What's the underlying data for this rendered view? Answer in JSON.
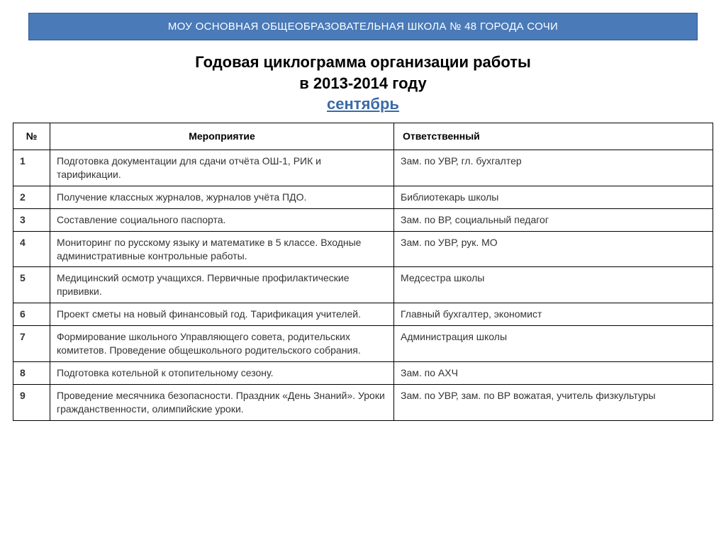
{
  "header": {
    "org_name": "МОУ ОСНОВНАЯ ОБЩЕОБРАЗОВАТЕЛЬНАЯ ШКОЛА № 48 ГОРОДА СОЧИ"
  },
  "title": {
    "line1": "Годовая циклограмма организации работы",
    "line2": "в 2013-2014 году",
    "month": "сентябрь"
  },
  "table": {
    "columns": {
      "num": "№",
      "event": "Мероприятие",
      "responsible": "Ответственный"
    },
    "rows": [
      {
        "num": "1",
        "event": "Подготовка документации для сдачи отчёта ОШ-1, РИК и тарификации.",
        "responsible": "Зам. по УВР, гл. бухгалтер"
      },
      {
        "num": "2",
        "event": "Получение классных журналов, журналов учёта ПДО.",
        "responsible": "Библиотекарь школы"
      },
      {
        "num": "3",
        "event": "Составление социального паспорта.",
        "responsible": "Зам. по ВР, социальный педагог"
      },
      {
        "num": "4",
        "event": "Мониторинг по русскому языку и математике в 5 классе. Входные административные контрольные работы.",
        "responsible": "Зам. по УВР, рук. МО"
      },
      {
        "num": "5",
        "event": "Медицинский осмотр учащихся. Первичные профилактические прививки.",
        "responsible": "Медсестра школы"
      },
      {
        "num": "6",
        "event": "Проект сметы на новый финансовый год. Тарификация учителей.",
        "responsible": "Главный бухгалтер, экономист"
      },
      {
        "num": "7",
        "event": "Формирование школьного Управляющего совета, родительских комитетов. Проведение общешкольного родительского собрания.",
        "responsible": "Администрация школы"
      },
      {
        "num": "8",
        "event": "Подготовка котельной к отопительному сезону.",
        "responsible": "Зам. по АХЧ"
      },
      {
        "num": "9",
        "event": "Проведение месячника безопасности. Праздник «День Знаний». Уроки гражданственности, олимпийские уроки.",
        "responsible": "Зам. по УВР, зам. по ВР вожатая, учитель физкультуры"
      }
    ]
  },
  "style": {
    "header_bg": "#4a7ab8",
    "header_border": "#2a5a98",
    "header_text": "#ffffff",
    "title_color": "#000000",
    "month_color": "#3a6aa8",
    "table_border": "#000000",
    "cell_text": "#333333",
    "body_bg": "#ffffff",
    "col_widths": {
      "num": 52,
      "event": 485
    },
    "font_family": "Verdana",
    "title_fontsize": 22,
    "header_fontsize": 15,
    "cell_fontsize": 14
  }
}
